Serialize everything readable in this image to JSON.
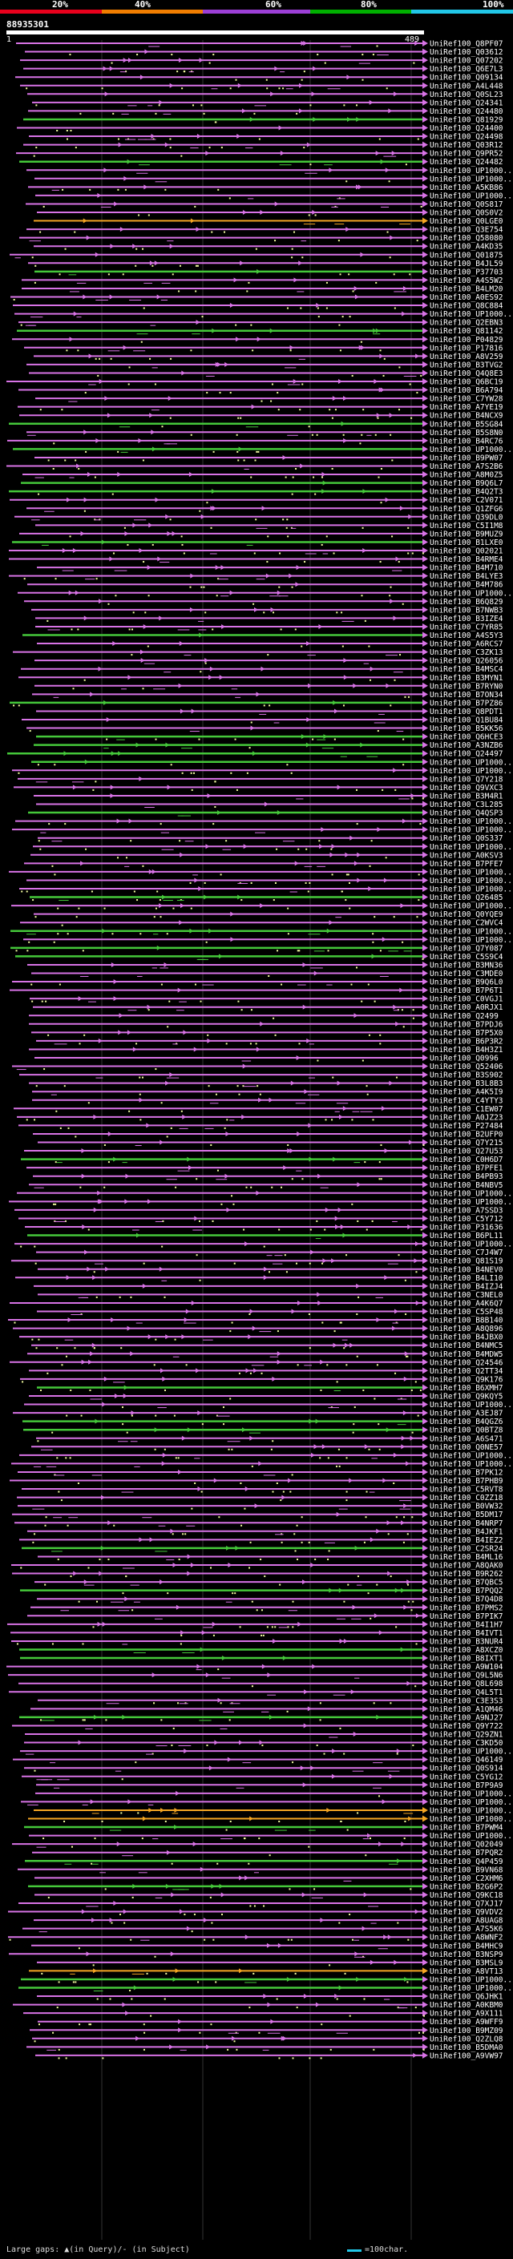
{
  "legend": {
    "ticks": [
      "20%",
      "40%",
      "60%",
      "80%",
      "100%"
    ],
    "colors": [
      "#e8001c",
      "#f07d00",
      "#9c3fd6",
      "#00b000",
      "#22c7e8"
    ]
  },
  "query": {
    "id": "88935301",
    "start": "1",
    "end": "489",
    "color": "#ffffff"
  },
  "track_colors": {
    "magenta": "#d873e6",
    "green": "#45c83a",
    "cyan": "#22c7e8",
    "orange": "#f5a623",
    "gap": "#f4ffa0"
  },
  "hits": [
    "UniRef100_Q8PF07",
    "UniRef100_Q03612",
    "UniRef100_Q07202",
    "UniRef100_Q6E7L3",
    "UniRef100_Q09134",
    "UniRef100_A4L448",
    "UniRef100_Q0SL23",
    "UniRef100_Q24341",
    "UniRef100_Q24480",
    "UniRef100_Q81929",
    "UniRef100_Q24400",
    "UniRef100_Q24498",
    "UniRef100_Q03R12",
    "UniRef100_Q9PR52",
    "UniRef100_Q24482",
    "UniRef100_UP1000...",
    "UniRef100_UP1000...",
    "UniRef100_A5KB86",
    "UniRef100_UP1000...",
    "UniRef100_Q0S817",
    "UniRef100_Q0S0V2",
    "UniRef100_Q0LGE0",
    "UniRef100_Q3E754",
    "UniRef100_Q58080",
    "UniRef100_A4KD35",
    "UniRef100_Q01875",
    "UniRef100_B4JL59",
    "UniRef100_P37703",
    "UniRef100_A4S5W2",
    "UniRef100_B4LM20",
    "UniRef100_A0ES92",
    "UniRef100_Q8C884",
    "UniRef100_UP1000...",
    "UniRef100_Q2EBN3",
    "UniRef100_Q81142",
    "UniRef100_P04829",
    "UniRef100_P17816",
    "UniRef100_A8V259",
    "UniRef100_B3TVG2",
    "UniRef100_Q4Q8E3",
    "UniRef100_Q6BC19",
    "UniRef100_B6A794",
    "UniRef100_C7YW28",
    "UniRef100_A7YE19",
    "UniRef100_B4NCX9",
    "UniRef100_B5SG84",
    "UniRef100_B5S8N0",
    "UniRef100_B4RC76",
    "UniRef100_UP1000...",
    "UniRef100_B9PW07",
    "UniRef100_A7S2B6",
    "UniRef100_A8M0Z5",
    "UniRef100_B9Q6L7",
    "UniRef100_B4Q2T3",
    "UniRef100_C2V071",
    "UniRef100_Q1ZFG6",
    "UniRef100_Q39DL0",
    "UniRef100_C5I1M8",
    "UniRef100_B9MUZ9",
    "UniRef100_B1LXE0",
    "UniRef100_Q02021",
    "UniRef100_B4RME4",
    "UniRef100_B4M710",
    "UniRef100_B4LYE3",
    "UniRef100_B4M786",
    "UniRef100_UP1000...",
    "UniRef100_B6Q829",
    "UniRef100_B7NWB3",
    "UniRef100_B3IZE4",
    "UniRef100_C7YR85",
    "UniRef100_A4S5Y3",
    "UniRef100_A6RCS7",
    "UniRef100_C3ZK13",
    "UniRef100_Q26056",
    "UniRef100_B4MSC4",
    "UniRef100_B3MYN1",
    "UniRef100_B7RYN0",
    "UniRef100_B7ON34",
    "UniRef100_B7PZ86",
    "UniRef100_Q8PDT1",
    "UniRef100_Q1BU84",
    "UniRef100_B5KK56",
    "UniRef100_Q6HCE3",
    "UniRef100_A3NZB6",
    "UniRef100_Q24497",
    "UniRef100_UP1000...",
    "UniRef100_UP1000...",
    "UniRef100_Q7Y218",
    "UniRef100_Q9VXC3",
    "UniRef100_B3M4R1",
    "UniRef100_C3L285",
    "UniRef100_Q4QSP3",
    "UniRef100_UP1000...",
    "UniRef100_UP1000...",
    "UniRef100_Q0S337",
    "UniRef100_UP1000...",
    "UniRef100_A0KSV3",
    "UniRef100_B7PFE7",
    "UniRef100_UP1000...",
    "UniRef100_UP1000...",
    "UniRef100_UP1000...",
    "UniRef100_Q26485",
    "UniRef100_UP1000...",
    "UniRef100_Q0YQE9",
    "UniRef100_C2WVC4",
    "UniRef100_UP1000...",
    "UniRef100_UP1000...",
    "UniRef100_Q7Y087",
    "UniRef100_C5S9C4",
    "UniRef100_B3MN36",
    "UniRef100_C3MDE0",
    "UniRef100_B9Q6L0",
    "UniRef100_B7P6T1",
    "UniRef100_C0VGJ1",
    "UniRef100_A0RJX1",
    "UniRef100_Q2499",
    "UniRef100_B7PDJ6",
    "UniRef100_B7P5X0",
    "UniRef100_B6P3R2",
    "UniRef100_B4H3Z1",
    "UniRef100_Q0996",
    "UniRef100_Q52406",
    "UniRef100_B3S902",
    "UniRef100_B3L8B3",
    "UniRef100_A4K5I9",
    "UniRef100_C4YTY3",
    "UniRef100_C1EW07",
    "UniRef100_A0JZ23",
    "UniRef100_P27484",
    "UniRef100_B2UFP0",
    "UniRef100_Q7Y215",
    "UniRef100_Q27U53",
    "UniRef100_C0H6D7",
    "UniRef100_B7PFE1",
    "UniRef100_B4PB93",
    "UniRef100_B4NBV5",
    "UniRef100_UP1000...",
    "UniRef100_UP1000...",
    "UniRef100_A7SSD3",
    "UniRef100_C5Y712",
    "UniRef100_P31636",
    "UniRef100_B6PL11",
    "UniRef100_UP1000...",
    "UniRef100_C7J4W7",
    "UniRef100_Q81S19",
    "UniRef100_B4NEV0",
    "UniRef100_B4LI10",
    "UniRef100_B4IZJ4",
    "UniRef100_C3NEL0",
    "UniRef100_A4K6Q7",
    "UniRef100_C5SP48",
    "UniRef100_B8B140",
    "UniRef100_A8Q896",
    "UniRef100_B4JBX0",
    "UniRef100_B4NMC5",
    "UniRef100_B4MDW5",
    "UniRef100_Q24546",
    "UniRef100_Q2TT34",
    "UniRef100_Q9K176",
    "UniRef100_B6XMH7",
    "UniRef100_Q9KQY5",
    "UniRef100_UP1000...",
    "UniRef100_A3EJ87",
    "UniRef100_B4QGZ6",
    "UniRef100_Q0BTZ8",
    "UniRef100_A6S471",
    "UniRef100_Q0NE57",
    "UniRef100_UP1000...",
    "UniRef100_UP1000...",
    "UniRef100_B7PK12",
    "UniRef100_B7PHB9",
    "UniRef100_C5RVT8",
    "UniRef100_C0ZZ18",
    "UniRef100_B0VW32",
    "UniRef100_B5DM17",
    "UniRef100_B4NRP7",
    "UniRef100_B4JKF1",
    "UniRef100_B4IEZ2",
    "UniRef100_C2SR24",
    "UniRef100_B4ML16",
    "UniRef100_A8QAK0",
    "UniRef100_B9R262",
    "UniRef100_B7QBC5",
    "UniRef100_B7PQQ2",
    "UniRef100_B7Q4D8",
    "UniRef100_B7PMS2",
    "UniRef100_B7PIK7",
    "UniRef100_B4I1H7",
    "UniRef100_B4IVT1",
    "UniRef100_B3NUR4",
    "UniRef100_A8XCZ0",
    "UniRef100_B8IXT1",
    "UniRef100_A9W104",
    "UniRef100_Q9L5N6",
    "UniRef100_Q8L698",
    "UniRef100_Q4L5T1",
    "UniRef100_C3E3S3",
    "UniRef100_A1QM46",
    "UniRef100_A9NJ27",
    "UniRef100_Q9Y722",
    "UniRef100_Q29ZN1",
    "UniRef100_C3KD50",
    "UniRef100_UP1000...",
    "UniRef100_Q46149",
    "UniRef100_Q0S914",
    "UniRef100_C5YG12",
    "UniRef100_B7P9A9",
    "UniRef100_UP1000...",
    "UniRef100_UP1000...",
    "UniRef100_UP1000...",
    "UniRef100_UP1000...",
    "UniRef100_B7PWM4",
    "UniRef100_UP1000...",
    "UniRef100_Q02049",
    "UniRef100_B7PQR2",
    "UniRef100_Q4P459",
    "UniRef100_B9VN68",
    "UniRef100_C2XHM6",
    "UniRef100_B2G6P2",
    "UniRef100_Q9KC18",
    "UniRef100_Q7XJ17",
    "UniRef100_Q9VDV2",
    "UniRef100_A8UAG8",
    "UniRef100_A7S5K6",
    "UniRef100_A8WNF2",
    "UniRef100_B4MHC9",
    "UniRef100_B3NSP9",
    "UniRef100_B3MSL9",
    "UniRef100_A8VT13",
    "UniRef100_UP1000...",
    "UniRef100_UP1000...",
    "UniRef100_Q6JHK1",
    "UniRef100_A0KBM0",
    "UniRef100_A9X111",
    "UniRef100_A9WFF9",
    "UniRef100_B9MZ09",
    "UniRef100_Q2ZLQ8",
    "UniRef100_B5DMA0",
    "UniRef100_A9VW97"
  ],
  "footer": {
    "large_gaps": "Large gaps: ▲(in Query)/- (in Subject)",
    "scale": "=100char."
  }
}
